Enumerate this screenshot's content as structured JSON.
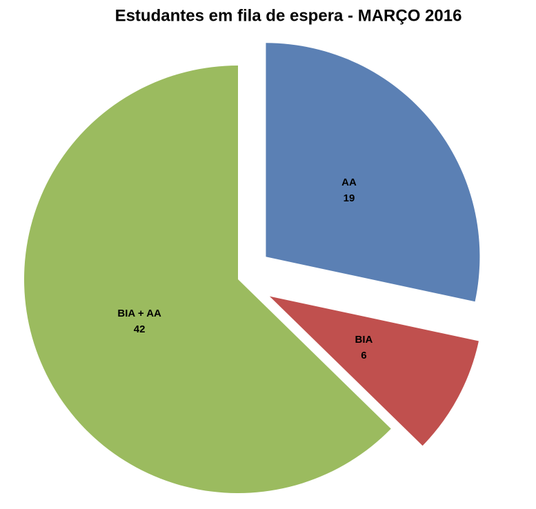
{
  "chart_data": {
    "type": "pie",
    "title": "Estudantes em fila de espera -  MARÇO 2016",
    "categories": [
      "AA",
      "BIA",
      "BIA + AA"
    ],
    "values": [
      19,
      6,
      42
    ],
    "colors": [
      "#5b80b4",
      "#c0504e",
      "#9bbb5f"
    ]
  }
}
